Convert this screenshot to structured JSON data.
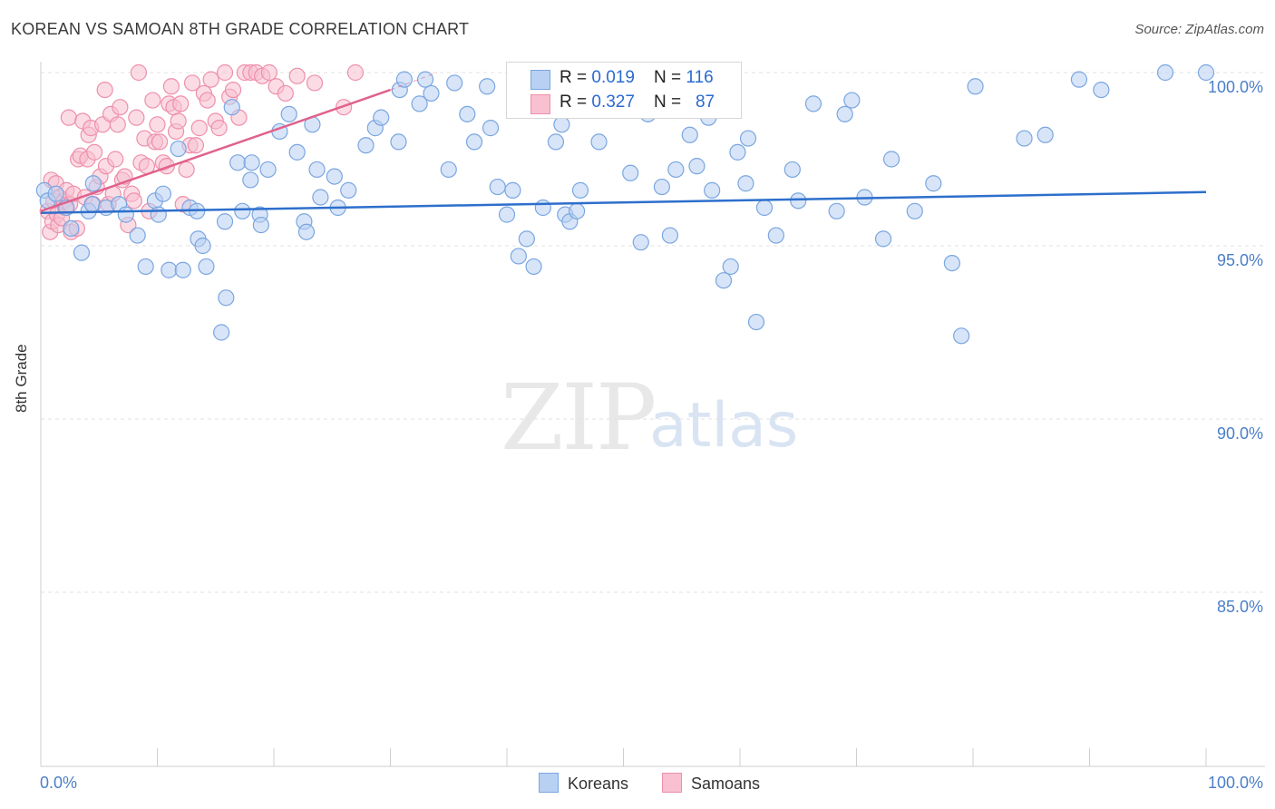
{
  "header": {
    "title": "KOREAN VS SAMOAN 8TH GRADE CORRELATION CHART",
    "source": "Source: ZipAtlas.com"
  },
  "watermark": {
    "zip": "ZIP",
    "atlas": "atlas"
  },
  "legend": {
    "rows": [
      {
        "r_label": "R = ",
        "r_value": "0.019",
        "n_label": "N = ",
        "n_value": "116"
      },
      {
        "r_label": "R = ",
        "r_value": "0.327",
        "n_label": "N = ",
        "n_value": "87"
      }
    ]
  },
  "colors": {
    "koreans_fill": "#b8d0f2",
    "koreans_stroke": "#7aa6e0",
    "koreans_line": "#2d6fcc",
    "samoans_fill": "#f8c0d0",
    "samoans_stroke": "#ee8fab",
    "samoans_line": "#e0628c",
    "tick_label": "#4a7ec9",
    "grid": "#e2e2e2"
  },
  "chart_data": {
    "type": "scatter",
    "title": "KOREAN VS SAMOAN 8TH GRADE CORRELATION CHART",
    "xlabel": "",
    "ylabel": "8th Grade",
    "xlim": [
      0,
      100
    ],
    "ylim": [
      80.5,
      100.5
    ],
    "x_tick_labels": [
      "0.0%",
      "100.0%"
    ],
    "y_ticks": [
      85,
      90,
      95,
      100
    ],
    "y_tick_labels": [
      "85.0%",
      "90.0%",
      "95.0%",
      "100.0%"
    ],
    "grid": true,
    "legend_position": "top-center",
    "series": [
      {
        "name": "Koreans",
        "trend": {
          "x": [
            0,
            100
          ],
          "y": [
            95.95,
            96.55
          ]
        },
        "points": [
          [
            0.3,
            96.6
          ],
          [
            0.6,
            96.3
          ],
          [
            1.3,
            96.5
          ],
          [
            2.2,
            96.1
          ],
          [
            2.6,
            95.5
          ],
          [
            3.5,
            94.8
          ],
          [
            4.1,
            96.0
          ],
          [
            4.4,
            96.2
          ],
          [
            4.5,
            96.8
          ],
          [
            5.6,
            96.1
          ],
          [
            6.7,
            96.2
          ],
          [
            7.3,
            95.9
          ],
          [
            8.3,
            95.3
          ],
          [
            9.0,
            94.4
          ],
          [
            9.8,
            96.3
          ],
          [
            10.1,
            95.9
          ],
          [
            10.5,
            96.5
          ],
          [
            11.0,
            94.3
          ],
          [
            11.8,
            97.8
          ],
          [
            12.2,
            94.3
          ],
          [
            12.8,
            96.1
          ],
          [
            13.4,
            96.0
          ],
          [
            13.5,
            95.2
          ],
          [
            13.9,
            95.0
          ],
          [
            14.2,
            94.4
          ],
          [
            15.5,
            92.5
          ],
          [
            15.8,
            95.7
          ],
          [
            15.9,
            93.5
          ],
          [
            16.4,
            99.0
          ],
          [
            16.9,
            97.4
          ],
          [
            17.3,
            96.0
          ],
          [
            18.0,
            96.9
          ],
          [
            18.1,
            97.4
          ],
          [
            18.8,
            95.9
          ],
          [
            18.9,
            95.6
          ],
          [
            19.5,
            97.2
          ],
          [
            20.5,
            98.3
          ],
          [
            21.3,
            98.8
          ],
          [
            22.0,
            97.7
          ],
          [
            22.6,
            95.7
          ],
          [
            22.8,
            95.4
          ],
          [
            23.3,
            98.5
          ],
          [
            23.7,
            97.2
          ],
          [
            24.0,
            96.4
          ],
          [
            25.2,
            97.0
          ],
          [
            25.5,
            96.1
          ],
          [
            26.4,
            96.6
          ],
          [
            27.9,
            97.9
          ],
          [
            28.7,
            98.4
          ],
          [
            29.2,
            98.7
          ],
          [
            30.7,
            98.0
          ],
          [
            30.8,
            99.5
          ],
          [
            31.2,
            99.8
          ],
          [
            32.5,
            99.1
          ],
          [
            33.0,
            99.8
          ],
          [
            33.5,
            99.4
          ],
          [
            35.0,
            97.2
          ],
          [
            35.5,
            99.7
          ],
          [
            36.6,
            98.8
          ],
          [
            37.2,
            98.0
          ],
          [
            38.3,
            99.6
          ],
          [
            38.6,
            98.4
          ],
          [
            39.2,
            96.7
          ],
          [
            40.0,
            95.9
          ],
          [
            40.5,
            96.6
          ],
          [
            41.0,
            94.7
          ],
          [
            41.7,
            95.2
          ],
          [
            42.3,
            94.4
          ],
          [
            43.1,
            96.1
          ],
          [
            44.2,
            98.0
          ],
          [
            44.7,
            98.5
          ],
          [
            45.0,
            95.9
          ],
          [
            45.4,
            95.7
          ],
          [
            46.0,
            96.0
          ],
          [
            46.3,
            96.6
          ],
          [
            47.9,
            98.0
          ],
          [
            49.8,
            99.5
          ],
          [
            50.6,
            97.1
          ],
          [
            51.5,
            95.1
          ],
          [
            52.1,
            98.8
          ],
          [
            53.3,
            96.7
          ],
          [
            54.0,
            95.3
          ],
          [
            54.5,
            97.2
          ],
          [
            55.7,
            98.2
          ],
          [
            56.3,
            97.3
          ],
          [
            57.3,
            98.7
          ],
          [
            57.6,
            96.6
          ],
          [
            58.0,
            98.9
          ],
          [
            58.6,
            94.0
          ],
          [
            59.2,
            94.4
          ],
          [
            59.8,
            97.7
          ],
          [
            60.5,
            96.8
          ],
          [
            60.7,
            98.1
          ],
          [
            61.4,
            92.8
          ],
          [
            62.1,
            96.1
          ],
          [
            63.1,
            95.3
          ],
          [
            64.5,
            97.2
          ],
          [
            65.0,
            96.3
          ],
          [
            66.3,
            99.1
          ],
          [
            68.3,
            96.0
          ],
          [
            69.0,
            98.8
          ],
          [
            69.6,
            99.2
          ],
          [
            70.7,
            96.4
          ],
          [
            72.3,
            95.2
          ],
          [
            73.0,
            97.5
          ],
          [
            75.0,
            96.0
          ],
          [
            76.6,
            96.8
          ],
          [
            78.2,
            94.5
          ],
          [
            79.0,
            92.4
          ],
          [
            80.2,
            99.6
          ],
          [
            84.4,
            98.1
          ],
          [
            86.2,
            98.2
          ],
          [
            89.1,
            99.8
          ],
          [
            91.0,
            99.5
          ],
          [
            96.5,
            100.0
          ],
          [
            100.0,
            100.0
          ]
        ]
      },
      {
        "name": "Samoans",
        "trend": {
          "x": [
            0,
            30
          ],
          "y": [
            96.0,
            99.5
          ]
        },
        "trend_dashed": {
          "x": [
            30,
            34
          ],
          "y": [
            99.5,
            100.0
          ]
        },
        "points": [
          [
            0.6,
            96.0
          ],
          [
            0.8,
            95.4
          ],
          [
            0.9,
            96.9
          ],
          [
            1.0,
            95.7
          ],
          [
            1.1,
            96.3
          ],
          [
            1.3,
            96.8
          ],
          [
            1.4,
            95.9
          ],
          [
            1.5,
            95.6
          ],
          [
            1.6,
            96.4
          ],
          [
            1.8,
            95.8
          ],
          [
            2.0,
            96.3
          ],
          [
            2.1,
            96.1
          ],
          [
            2.2,
            96.6
          ],
          [
            2.4,
            98.7
          ],
          [
            2.5,
            96.2
          ],
          [
            2.6,
            95.4
          ],
          [
            2.8,
            96.5
          ],
          [
            3.1,
            95.5
          ],
          [
            3.2,
            97.5
          ],
          [
            3.4,
            97.6
          ],
          [
            3.6,
            98.6
          ],
          [
            3.8,
            96.4
          ],
          [
            4.0,
            97.5
          ],
          [
            4.1,
            98.2
          ],
          [
            4.3,
            98.4
          ],
          [
            4.5,
            96.2
          ],
          [
            4.6,
            97.7
          ],
          [
            4.8,
            96.7
          ],
          [
            5.1,
            97.0
          ],
          [
            5.3,
            98.5
          ],
          [
            5.5,
            99.5
          ],
          [
            5.6,
            97.3
          ],
          [
            5.8,
            96.2
          ],
          [
            6.0,
            98.8
          ],
          [
            6.2,
            96.5
          ],
          [
            6.4,
            97.5
          ],
          [
            6.6,
            98.5
          ],
          [
            6.8,
            99.0
          ],
          [
            7.0,
            96.9
          ],
          [
            7.2,
            97.0
          ],
          [
            7.5,
            95.6
          ],
          [
            7.8,
            96.5
          ],
          [
            8.0,
            96.3
          ],
          [
            8.2,
            98.7
          ],
          [
            8.4,
            100.0
          ],
          [
            8.6,
            97.4
          ],
          [
            8.9,
            98.1
          ],
          [
            9.1,
            97.3
          ],
          [
            9.3,
            96.0
          ],
          [
            9.6,
            99.2
          ],
          [
            9.8,
            98.0
          ],
          [
            10.0,
            98.5
          ],
          [
            10.2,
            98.0
          ],
          [
            10.5,
            97.4
          ],
          [
            10.8,
            97.3
          ],
          [
            11.0,
            99.1
          ],
          [
            11.2,
            99.6
          ],
          [
            11.4,
            99.0
          ],
          [
            11.6,
            98.3
          ],
          [
            11.8,
            98.6
          ],
          [
            12.0,
            99.1
          ],
          [
            12.2,
            96.2
          ],
          [
            12.5,
            97.2
          ],
          [
            12.8,
            97.9
          ],
          [
            13.0,
            99.7
          ],
          [
            13.3,
            97.9
          ],
          [
            13.6,
            98.4
          ],
          [
            14.0,
            99.4
          ],
          [
            14.3,
            99.2
          ],
          [
            14.6,
            99.8
          ],
          [
            15.0,
            98.6
          ],
          [
            15.3,
            98.4
          ],
          [
            15.8,
            100.0
          ],
          [
            16.2,
            99.3
          ],
          [
            16.5,
            99.5
          ],
          [
            17.0,
            98.7
          ],
          [
            17.5,
            100.0
          ],
          [
            18.0,
            100.0
          ],
          [
            18.5,
            100.0
          ],
          [
            19.0,
            99.9
          ],
          [
            19.6,
            100.0
          ],
          [
            20.2,
            99.6
          ],
          [
            21.0,
            99.4
          ],
          [
            22.0,
            99.9
          ],
          [
            23.5,
            99.7
          ],
          [
            26.0,
            99.0
          ],
          [
            27.0,
            100.0
          ]
        ]
      }
    ]
  }
}
